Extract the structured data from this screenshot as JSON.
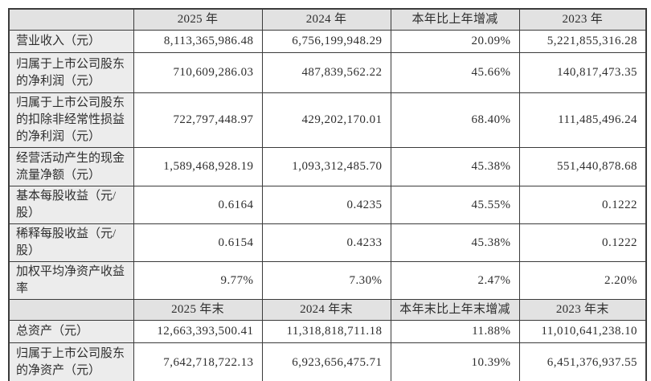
{
  "table": {
    "section_current": {
      "headers": {
        "corner": "",
        "y2025": "2025 年",
        "y2024": "2024 年",
        "change": "本年比上年增减",
        "y2023": "2023 年"
      },
      "rows": [
        {
          "label": "营业收入（元）",
          "values": [
            "8,113,365,986.48",
            "6,756,199,948.29",
            "20.09%",
            "5,221,855,316.28"
          ]
        },
        {
          "label": "归属于上市公司股东的净利润（元）",
          "values": [
            "710,609,286.03",
            "487,839,562.22",
            "45.66%",
            "140,817,473.35"
          ]
        },
        {
          "label": "归属于上市公司股东的扣除非经常性损益的净利润（元）",
          "values": [
            "722,797,448.97",
            "429,202,170.01",
            "68.40%",
            "111,485,496.24"
          ]
        },
        {
          "label": "经营活动产生的现金流量净额（元）",
          "values": [
            "1,589,468,928.19",
            "1,093,312,485.70",
            "45.38%",
            "551,440,878.68"
          ]
        },
        {
          "label": "基本每股收益（元/股）",
          "values": [
            "0.6164",
            "0.4235",
            "45.55%",
            "0.1222"
          ]
        },
        {
          "label": "稀释每股收益（元/股）",
          "values": [
            "0.6154",
            "0.4233",
            "45.38%",
            "0.1222"
          ]
        },
        {
          "label": "加权平均净资产收益率",
          "values": [
            "9.77%",
            "7.30%",
            "2.47%",
            "2.20%"
          ]
        }
      ]
    },
    "section_yearend": {
      "headers": {
        "corner": "",
        "y2025": "2025 年末",
        "y2024": "2024 年末",
        "change": "本年末比上年末增减",
        "y2023": "2023 年末"
      },
      "rows": [
        {
          "label": "总资产（元）",
          "values": [
            "12,663,393,500.41",
            "11,318,818,711.18",
            "11.88%",
            "11,010,641,238.10"
          ]
        },
        {
          "label": "归属于上市公司股东的净资产（元）",
          "values": [
            "7,642,718,722.13",
            "6,923,656,475.71",
            "10.39%",
            "6,451,376,937.55"
          ]
        }
      ]
    }
  }
}
